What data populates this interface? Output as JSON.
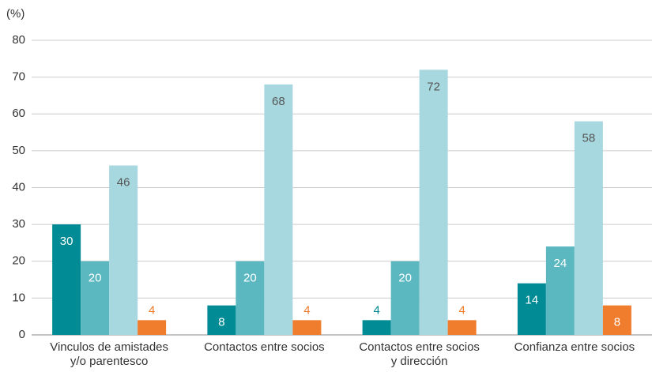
{
  "chart_data": {
    "type": "bar",
    "y_label": "(%)",
    "categories": [
      [
        "Vinculos de amistades",
        "y/o parentesco"
      ],
      [
        "Contactos entre socios"
      ],
      [
        "Contactos entre socios",
        "y dirección"
      ],
      [
        "Confianza entre socios"
      ]
    ],
    "series": [
      {
        "color": "#008b95",
        "label_color": "#ffffff",
        "values": [
          30,
          8,
          4,
          14
        ]
      },
      {
        "color": "#5bb8c0",
        "label_color": "#ffffff",
        "values": [
          20,
          20,
          20,
          24
        ]
      },
      {
        "color": "#a8d8df",
        "label_color": "#555555",
        "values": [
          46,
          68,
          72,
          58
        ]
      },
      {
        "color": "#f07c2e",
        "label_color": "#ffffff",
        "values": [
          4,
          4,
          4,
          8
        ]
      }
    ],
    "ylim": [
      0,
      80
    ],
    "yticks": [
      0,
      10,
      20,
      30,
      40,
      50,
      60,
      70,
      80
    ],
    "grid": true
  }
}
